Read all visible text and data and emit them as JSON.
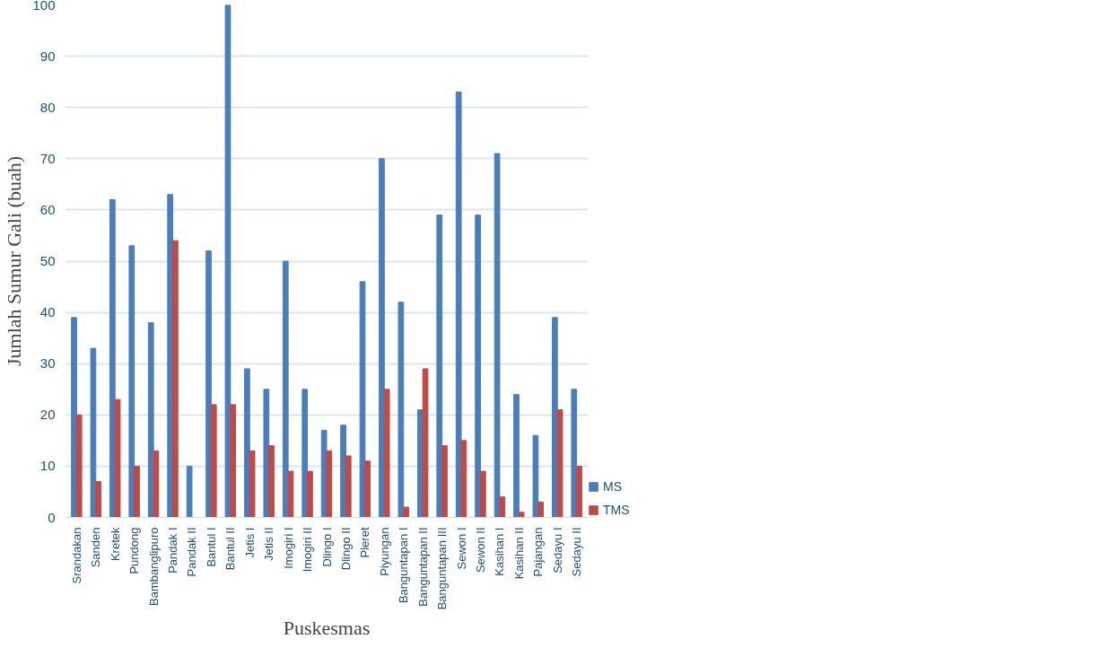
{
  "chart_data": {
    "type": "bar",
    "xlabel": "Puskesmas",
    "ylabel": "Jumlah Sumur Gali (buah)",
    "categories": [
      "Srandakan",
      "Sanden",
      "Kretek",
      "Pundong",
      "Bambanglipuro",
      "Pandak I",
      "Pandak II",
      "Bantul I",
      "Bantul II",
      "Jetis I",
      "Jetis II",
      "Imogiri I",
      "Imogiri II",
      "Dlingo I",
      "Dlingo II",
      "Pleret",
      "Piyungan",
      "Banguntapan I",
      "Banguntapan II",
      "Banguntapan III",
      "Sewon I",
      "Sewon II",
      "Kasihan I",
      "Kasihan II",
      "Pajangan",
      "Sedayu I",
      "Sedayu II"
    ],
    "series": [
      {
        "name": "MS",
        "color": "#4a7ebb",
        "values": [
          39,
          33,
          62,
          53,
          38,
          63,
          10,
          52,
          100,
          29,
          25,
          50,
          25,
          17,
          18,
          46,
          70,
          42,
          21,
          59,
          83,
          59,
          71,
          24,
          16,
          39,
          25
        ]
      },
      {
        "name": "TMS",
        "color": "#be4b48",
        "values": [
          20,
          7,
          23,
          10,
          13,
          54,
          0,
          22,
          22,
          13,
          14,
          9,
          9,
          13,
          12,
          11,
          25,
          2,
          29,
          14,
          15,
          9,
          4,
          1,
          3,
          21,
          10
        ]
      }
    ],
    "ylim": [
      0,
      100
    ],
    "yticks": [
      0,
      10,
      20,
      30,
      40,
      50,
      60,
      70,
      80,
      90,
      100
    ],
    "grid": "y",
    "legend": "bottom right"
  }
}
